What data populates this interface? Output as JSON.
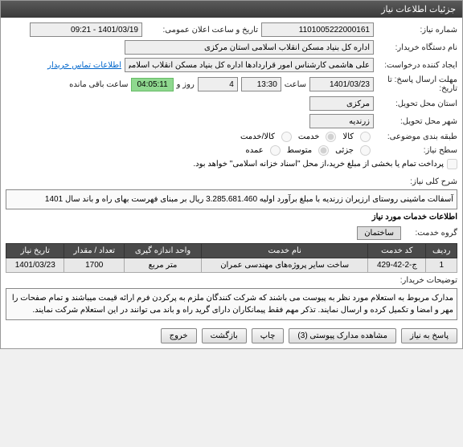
{
  "titlebar": "جزئیات اطلاعات نیاز",
  "labels": {
    "req_no": "شماره نیاز:",
    "org_name": "نام دستگاه خریدار:",
    "creator": "ایجاد کننده درخواست:",
    "deadline": "مهلت ارسال پاسخ: تا تاریخ:",
    "time": "ساعت",
    "days": "روز و",
    "remaining": "ساعت باقی مانده",
    "province": "استان محل تحویل:",
    "city": "شهر محل تحویل:",
    "category": "طبقه بندی موضوعی:",
    "level": "سطح نیاز:",
    "pay_note": "پرداخت تمام یا بخشی از مبلغ خرید،از محل \"اسناد خزانه اسلامی\" خواهد بود.",
    "announce": "تاریخ و ساعت اعلان عمومی:",
    "contact": "اطلاعات تماس خریدار",
    "desc": "شرح کلی نیاز:",
    "section": "اطلاعات خدمات مورد نیاز",
    "group": "گروه خدمت:",
    "notes_label": "توضیحات خریدار:"
  },
  "values": {
    "req_no": "1101005222000161",
    "org_name": "اداره کل بنیاد مسکن انقلاب اسلامی استان مرکزی",
    "creator": "علی هاشمی کارشناس امور قراردادها اداره کل بنیاد مسکن انقلاب اسلامی اس",
    "deadline_date": "1401/03/23",
    "deadline_time": "13:30",
    "days": "4",
    "countdown": "04:05:11",
    "province": "مرکزی",
    "city": "زرندیه",
    "announce": "1401/03/19 - 09:21",
    "group": "ساختمان"
  },
  "radios": {
    "kala": "کالا",
    "khadmat": "خدمت",
    "both": "کالا/خدمت",
    "jozei": "جزئی",
    "motavaset": "متوسط",
    "omde": "عمده"
  },
  "description": "آسفالت ماشینی روستای ارزیران زرندیه  با مبلغ برآورد اولیه  3.285.681.460 ریال بر مبنای فهرست بهای راه و باند سال 1401",
  "table": {
    "headers": [
      "ردیف",
      "کد خدمت",
      "نام خدمت",
      "واحد اندازه گیری",
      "تعداد / مقدار",
      "تاریخ نیاز"
    ],
    "row": [
      "1",
      "ج-2-42-429",
      "ساخت سایر پروژه‌های مهندسی عمران",
      "متر مربع",
      "1700",
      "1401/03/23"
    ]
  },
  "notes": "مدارک مربوط به استعلام مورد نظر به پیوست می باشند که شرکت کنندگان ملزم به پرکردن فرم ارائه قیمت میباشند و تمام صفحات را مهر و امضا و تکمیل کرده و ارسال نمایند. تذکر مهم فقط پیمانکاران دارای گرید راه و باند می توانند در این استعلام شرکت نمایند.",
  "buttons": {
    "respond": "پاسخ به نیاز",
    "attach": "مشاهده مدارک پیوستی (3)",
    "print": "چاپ",
    "back": "بازگشت",
    "exit": "خروج"
  }
}
